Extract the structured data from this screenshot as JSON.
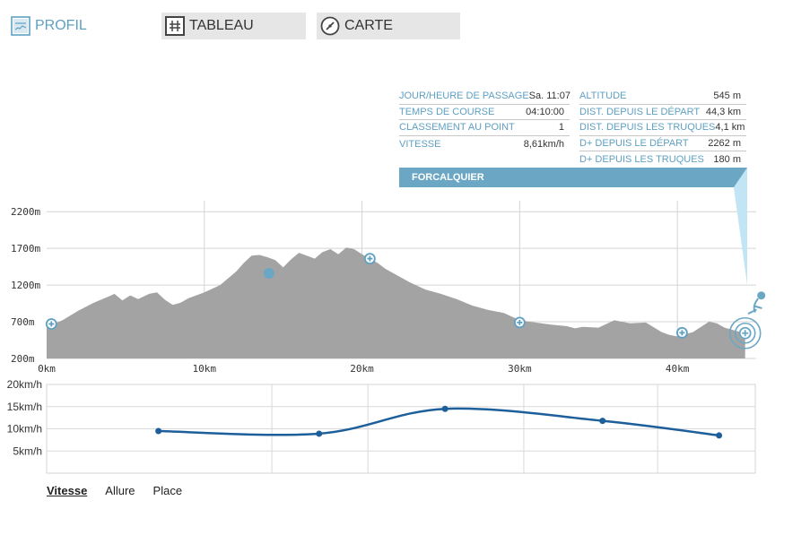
{
  "tabs": {
    "profil": "PROFIL",
    "tableau": "TABLEAU",
    "carte": "CARTE"
  },
  "info_left": [
    {
      "key": "JOUR/HEURE DE PASSAGE",
      "value": "Sa. 11:07"
    },
    {
      "key": "TEMPS DE COURSE",
      "value": "04:10:00"
    },
    {
      "key": "CLASSEMENT AU POINT",
      "value": "1"
    },
    {
      "key": "VITESSE",
      "value": "8,61km/h"
    }
  ],
  "info_right": [
    {
      "key": "ALTITUDE",
      "value": "545 m"
    },
    {
      "key": "DIST. DEPUIS LE DÉPART",
      "value": "44,3 km"
    },
    {
      "key": "DIST. DEPUIS LES TRUQUES",
      "value": "4,1 km"
    },
    {
      "key": "D+ DEPUIS LE DÉPART",
      "value": "2262 m"
    },
    {
      "key": "D+ DEPUIS LES TRUQUES",
      "value": "180 m"
    }
  ],
  "checkpoint_name": "FORCALQUIER",
  "subtabs": {
    "vitesse": "Vitesse",
    "allure": "Allure",
    "place": "Place"
  },
  "colors": {
    "accent": "#5fa0c2",
    "banner": "#6ba7c4",
    "profile_fill": "#a3a3a3",
    "speed_line": "#1d5f9a"
  },
  "chart_data": [
    {
      "type": "area",
      "x_unit": "km",
      "xlim": [
        0,
        45
      ],
      "ylim": [
        200,
        2300
      ],
      "x_ticks": [
        "0km",
        "10km",
        "20km",
        "30km",
        "40km"
      ],
      "y_ticks": [
        "2200m",
        "1700m",
        "1200m",
        "700m",
        "200m"
      ],
      "x_tick_values": [
        0,
        10,
        20,
        30,
        40
      ],
      "y_tick_values": [
        2200,
        1700,
        1200,
        700,
        200
      ],
      "profile": [
        [
          0,
          630
        ],
        [
          1,
          720
        ],
        [
          2,
          850
        ],
        [
          3,
          960
        ],
        [
          4,
          1050
        ],
        [
          4.3,
          1080
        ],
        [
          4.8,
          990
        ],
        [
          5.3,
          1060
        ],
        [
          5.8,
          1010
        ],
        [
          6.5,
          1080
        ],
        [
          7,
          1100
        ],
        [
          7.5,
          1000
        ],
        [
          8,
          930
        ],
        [
          8.5,
          960
        ],
        [
          9,
          1020
        ],
        [
          10,
          1100
        ],
        [
          11,
          1200
        ],
        [
          12,
          1380
        ],
        [
          12.5,
          1500
        ],
        [
          13,
          1600
        ],
        [
          13.5,
          1610
        ],
        [
          14,
          1580
        ],
        [
          14.5,
          1540
        ],
        [
          15,
          1440
        ],
        [
          15.5,
          1550
        ],
        [
          16,
          1640
        ],
        [
          16.5,
          1600
        ],
        [
          17,
          1560
        ],
        [
          17.5,
          1650
        ],
        [
          18,
          1690
        ],
        [
          18.5,
          1620
        ],
        [
          19,
          1710
        ],
        [
          19.5,
          1690
        ],
        [
          20,
          1620
        ],
        [
          20.5,
          1560
        ],
        [
          21,
          1500
        ],
        [
          21.5,
          1420
        ],
        [
          22,
          1360
        ],
        [
          22.5,
          1300
        ],
        [
          23,
          1240
        ],
        [
          24,
          1140
        ],
        [
          25,
          1080
        ],
        [
          26,
          1010
        ],
        [
          27,
          920
        ],
        [
          28,
          860
        ],
        [
          29,
          820
        ],
        [
          30,
          720
        ],
        [
          31,
          690
        ],
        [
          32,
          660
        ],
        [
          33,
          640
        ],
        [
          33.5,
          610
        ],
        [
          34,
          630
        ],
        [
          35,
          620
        ],
        [
          36,
          720
        ],
        [
          37,
          680
        ],
        [
          38,
          690
        ],
        [
          39,
          560
        ],
        [
          39.5,
          520
        ],
        [
          40,
          500
        ],
        [
          41,
          560
        ],
        [
          42,
          700
        ],
        [
          42.5,
          680
        ],
        [
          43,
          620
        ],
        [
          44,
          560
        ],
        [
          44.3,
          545
        ]
      ],
      "markers": [
        {
          "x": 0.3,
          "y": 670,
          "kind": "plus"
        },
        {
          "x": 14.1,
          "y": 1360,
          "kind": "dot"
        },
        {
          "x": 20.5,
          "y": 1560,
          "kind": "plus"
        },
        {
          "x": 30.0,
          "y": 690,
          "kind": "plus"
        },
        {
          "x": 40.3,
          "y": 550,
          "kind": "plus"
        },
        {
          "x": 44.3,
          "y": 545,
          "kind": "current"
        }
      ]
    },
    {
      "type": "line",
      "ylabel_unit": "km/h",
      "ylim": [
        0,
        20
      ],
      "y_ticks": [
        "20km/h",
        "15km/h",
        "10km/h",
        "5km/h"
      ],
      "y_tick_values": [
        20,
        15,
        10,
        5
      ],
      "xlim": [
        0,
        45
      ],
      "points": [
        [
          7.1,
          9.5
        ],
        [
          17.3,
          8.9
        ],
        [
          25.3,
          14.5
        ],
        [
          35.3,
          11.8
        ],
        [
          42.7,
          8.5
        ]
      ],
      "grid_x": [
        14.3,
        20.4,
        30.3,
        38.8
      ]
    }
  ]
}
